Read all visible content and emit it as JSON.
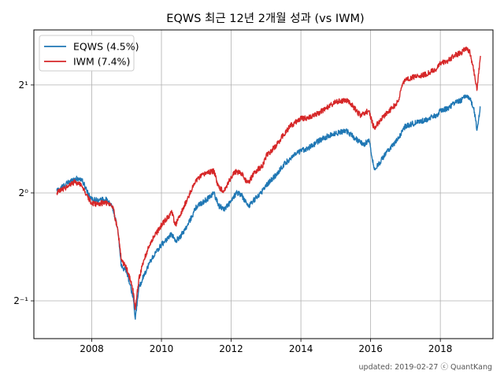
{
  "chart_data": {
    "type": "line",
    "title": "EQWS 최근 12년 2개월 성과 (vs IWM)",
    "xlabel": "",
    "ylabel": "",
    "y_scale": "log2",
    "ylim_log2": [
      -1.35,
      1.51
    ],
    "xlim": [
      2006.34,
      2019.51
    ],
    "x_ticks": [
      {
        "value": 2008,
        "label": "2008"
      },
      {
        "value": 2010,
        "label": "2010"
      },
      {
        "value": 2012,
        "label": "2012"
      },
      {
        "value": 2014,
        "label": "2014"
      },
      {
        "value": 2016,
        "label": "2016"
      },
      {
        "value": 2018,
        "label": "2018"
      }
    ],
    "y_ticks": [
      {
        "value_log2": -1,
        "label": "2⁻¹"
      },
      {
        "value_log2": 0,
        "label": "2⁰"
      },
      {
        "value_log2": 1,
        "label": "2¹"
      }
    ],
    "grid": true,
    "legend_position": "top-left",
    "series": [
      {
        "name": "EQWS (4.5%)",
        "color": "#1f77b4",
        "x": [
          2007.0,
          2007.3,
          2007.5,
          2007.7,
          2007.85,
          2008.0,
          2008.2,
          2008.4,
          2008.6,
          2008.75,
          2008.85,
          2009.0,
          2009.1,
          2009.2,
          2009.25,
          2009.35,
          2009.5,
          2009.7,
          2010.0,
          2010.3,
          2010.4,
          2010.55,
          2010.75,
          2011.0,
          2011.3,
          2011.5,
          2011.65,
          2011.8,
          2012.0,
          2012.15,
          2012.3,
          2012.4,
          2012.5,
          2012.7,
          2012.9,
          2013.0,
          2013.3,
          2013.5,
          2013.7,
          2014.0,
          2014.3,
          2014.5,
          2014.8,
          2015.0,
          2015.3,
          2015.5,
          2015.7,
          2015.8,
          2015.95,
          2016.1,
          2016.2,
          2016.4,
          2016.6,
          2016.8,
          2016.9,
          2017.0,
          2017.3,
          2017.6,
          2017.9,
          2018.0,
          2018.2,
          2018.4,
          2018.6,
          2018.75,
          2018.85,
          2018.98,
          2019.05,
          2019.15
        ],
        "y_log2": [
          0.02,
          0.09,
          0.13,
          0.13,
          0.03,
          -0.06,
          -0.07,
          -0.06,
          -0.13,
          -0.35,
          -0.68,
          -0.72,
          -0.85,
          -1.0,
          -1.17,
          -0.88,
          -0.76,
          -0.62,
          -0.48,
          -0.38,
          -0.45,
          -0.4,
          -0.3,
          -0.13,
          -0.06,
          0.0,
          -0.12,
          -0.15,
          -0.08,
          0.0,
          -0.02,
          -0.08,
          -0.12,
          -0.05,
          0.02,
          0.07,
          0.17,
          0.26,
          0.32,
          0.39,
          0.43,
          0.48,
          0.53,
          0.55,
          0.58,
          0.52,
          0.47,
          0.44,
          0.5,
          0.23,
          0.25,
          0.35,
          0.43,
          0.5,
          0.57,
          0.62,
          0.65,
          0.68,
          0.72,
          0.76,
          0.78,
          0.83,
          0.86,
          0.9,
          0.88,
          0.75,
          0.58,
          0.8
        ]
      },
      {
        "name": "IWM (7.4%)",
        "color": "#d62728",
        "x": [
          2007.0,
          2007.3,
          2007.5,
          2007.7,
          2007.85,
          2008.0,
          2008.2,
          2008.4,
          2008.6,
          2008.75,
          2008.85,
          2009.0,
          2009.1,
          2009.2,
          2009.25,
          2009.35,
          2009.5,
          2009.7,
          2010.0,
          2010.3,
          2010.4,
          2010.55,
          2010.75,
          2011.0,
          2011.3,
          2011.5,
          2011.65,
          2011.8,
          2012.0,
          2012.15,
          2012.3,
          2012.4,
          2012.5,
          2012.7,
          2012.9,
          2013.0,
          2013.3,
          2013.5,
          2013.7,
          2014.0,
          2014.3,
          2014.5,
          2014.8,
          2015.0,
          2015.3,
          2015.5,
          2015.7,
          2015.8,
          2015.95,
          2016.1,
          2016.2,
          2016.4,
          2016.6,
          2016.8,
          2016.9,
          2017.0,
          2017.3,
          2017.6,
          2017.9,
          2018.0,
          2018.2,
          2018.4,
          2018.6,
          2018.75,
          2018.85,
          2018.98,
          2019.05,
          2019.15
        ],
        "y_log2": [
          0.0,
          0.06,
          0.1,
          0.08,
          -0.02,
          -0.1,
          -0.1,
          -0.09,
          -0.12,
          -0.35,
          -0.62,
          -0.7,
          -0.8,
          -0.93,
          -1.08,
          -0.8,
          -0.62,
          -0.45,
          -0.3,
          -0.18,
          -0.3,
          -0.2,
          -0.05,
          0.12,
          0.19,
          0.2,
          0.05,
          0.02,
          0.15,
          0.2,
          0.18,
          0.12,
          0.1,
          0.2,
          0.25,
          0.34,
          0.44,
          0.54,
          0.62,
          0.69,
          0.7,
          0.74,
          0.8,
          0.84,
          0.86,
          0.8,
          0.72,
          0.74,
          0.76,
          0.6,
          0.64,
          0.72,
          0.78,
          0.85,
          1.0,
          1.05,
          1.08,
          1.1,
          1.15,
          1.2,
          1.22,
          1.27,
          1.3,
          1.35,
          1.3,
          1.1,
          0.95,
          1.27
        ]
      }
    ]
  },
  "footer": {
    "text": "updated: 2019-02-27 ⓒ QuantKang"
  }
}
